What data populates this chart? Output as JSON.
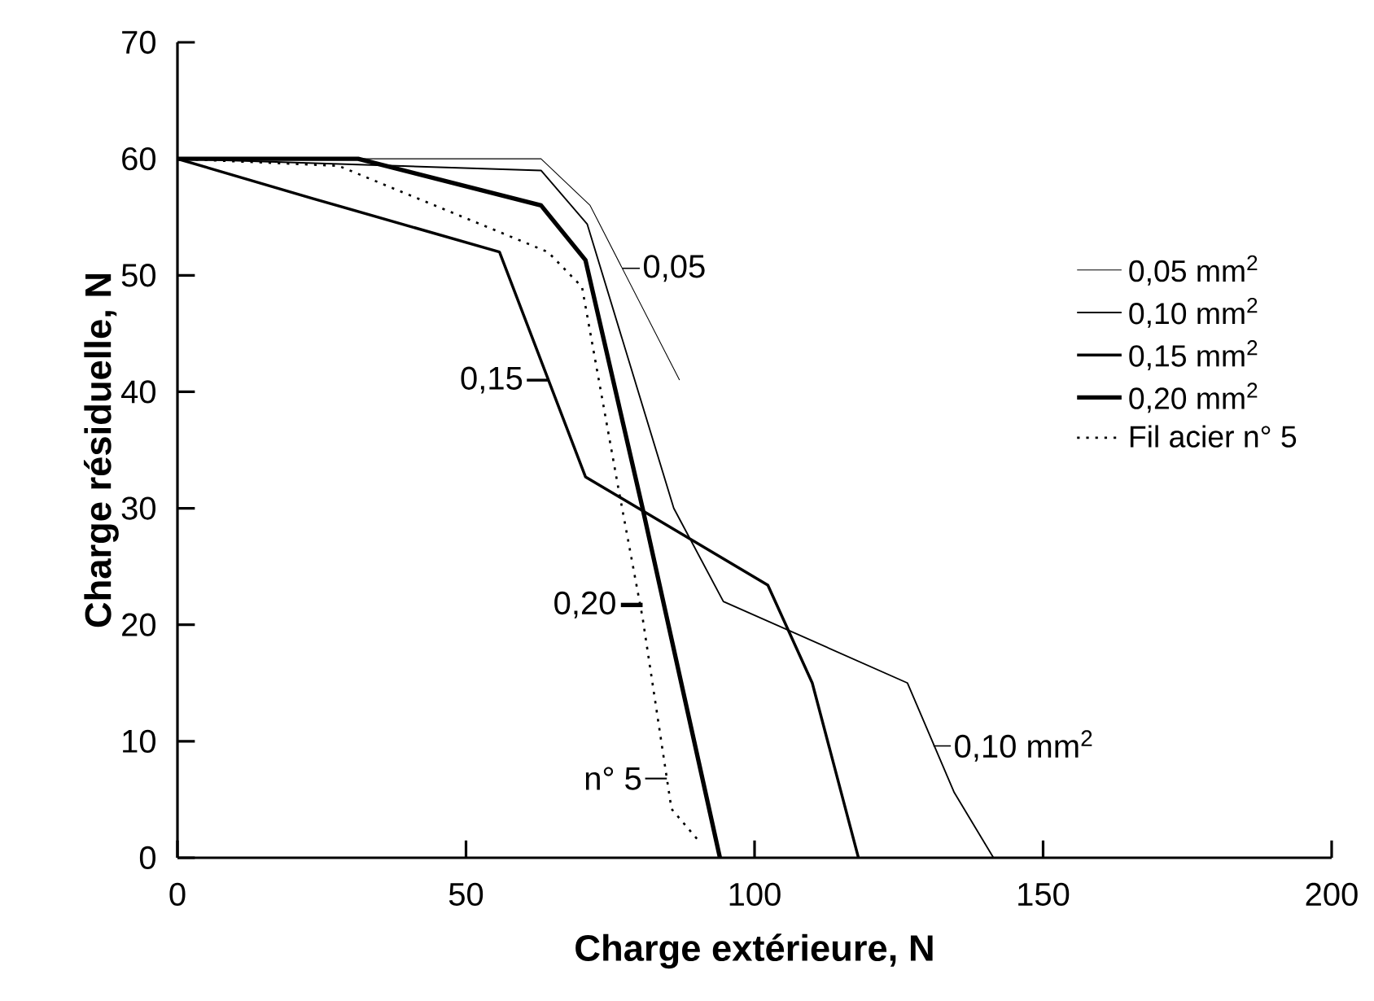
{
  "chart_data": {
    "type": "line",
    "xlabel": "Charge extérieure, N",
    "ylabel": "Charge résiduelle, N",
    "xlim": [
      0,
      200
    ],
    "ylim": [
      0,
      70
    ],
    "xticks": [
      0,
      50,
      100,
      150,
      200
    ],
    "yticks": [
      0,
      10,
      20,
      30,
      40,
      50,
      60,
      70
    ],
    "grid": false,
    "legend": "right",
    "marker": "none",
    "series": [
      {
        "name": "0,05 mm$^{2}$",
        "color": "#000000",
        "line_style": "solid",
        "x": [
          0,
          63,
          71.5,
          87
        ],
        "values": [
          60,
          60,
          56,
          41
        ]
      },
      {
        "name": "0,10 mm$^{2}$",
        "color": "#000000",
        "line_style": "solid",
        "x": [
          0,
          63,
          71,
          86,
          94.6,
          126.5,
          134.6,
          141.4
        ],
        "values": [
          60,
          59,
          54.4,
          30,
          22,
          15,
          5.6,
          0
        ]
      },
      {
        "name": "0,15 mm$^{2}$",
        "color": "#000000",
        "line_style": "solid",
        "x": [
          0,
          23.4,
          55.8,
          70.7,
          102.3,
          110,
          118
        ],
        "values": [
          60,
          56.6,
          52,
          32.7,
          23.4,
          15,
          0
        ]
      },
      {
        "name": "0,20 mm$^{2}$",
        "color": "#000000",
        "line_style": "solid",
        "x": [
          0,
          31.3,
          63,
          70.7,
          80.6,
          94
        ],
        "values": [
          60,
          60,
          56,
          51.3,
          30,
          0
        ]
      },
      {
        "name": "Fil acier n° 5",
        "color": "#000000",
        "line_style": "dotted",
        "x": [
          0,
          27.9,
          64.2,
          70.1,
          76.3,
          80.6,
          85.6,
          90.4
        ],
        "values": [
          60,
          59.4,
          52,
          49,
          32,
          20.6,
          4.2,
          1.4
        ]
      }
    ],
    "annotations": [
      {
        "text": "0,05",
        "x": 77.1,
        "y": 50.6
      },
      {
        "text": "0,15",
        "x": 64.3,
        "y": 41
      },
      {
        "text": "0,20",
        "x": 80.6,
        "y": 21.7
      },
      {
        "text": "n° 5",
        "x": 84.8,
        "y": 6.8
      },
      {
        "text": "0,10 mm$^{2}$",
        "x": 131,
        "y": 9.6
      }
    ]
  }
}
